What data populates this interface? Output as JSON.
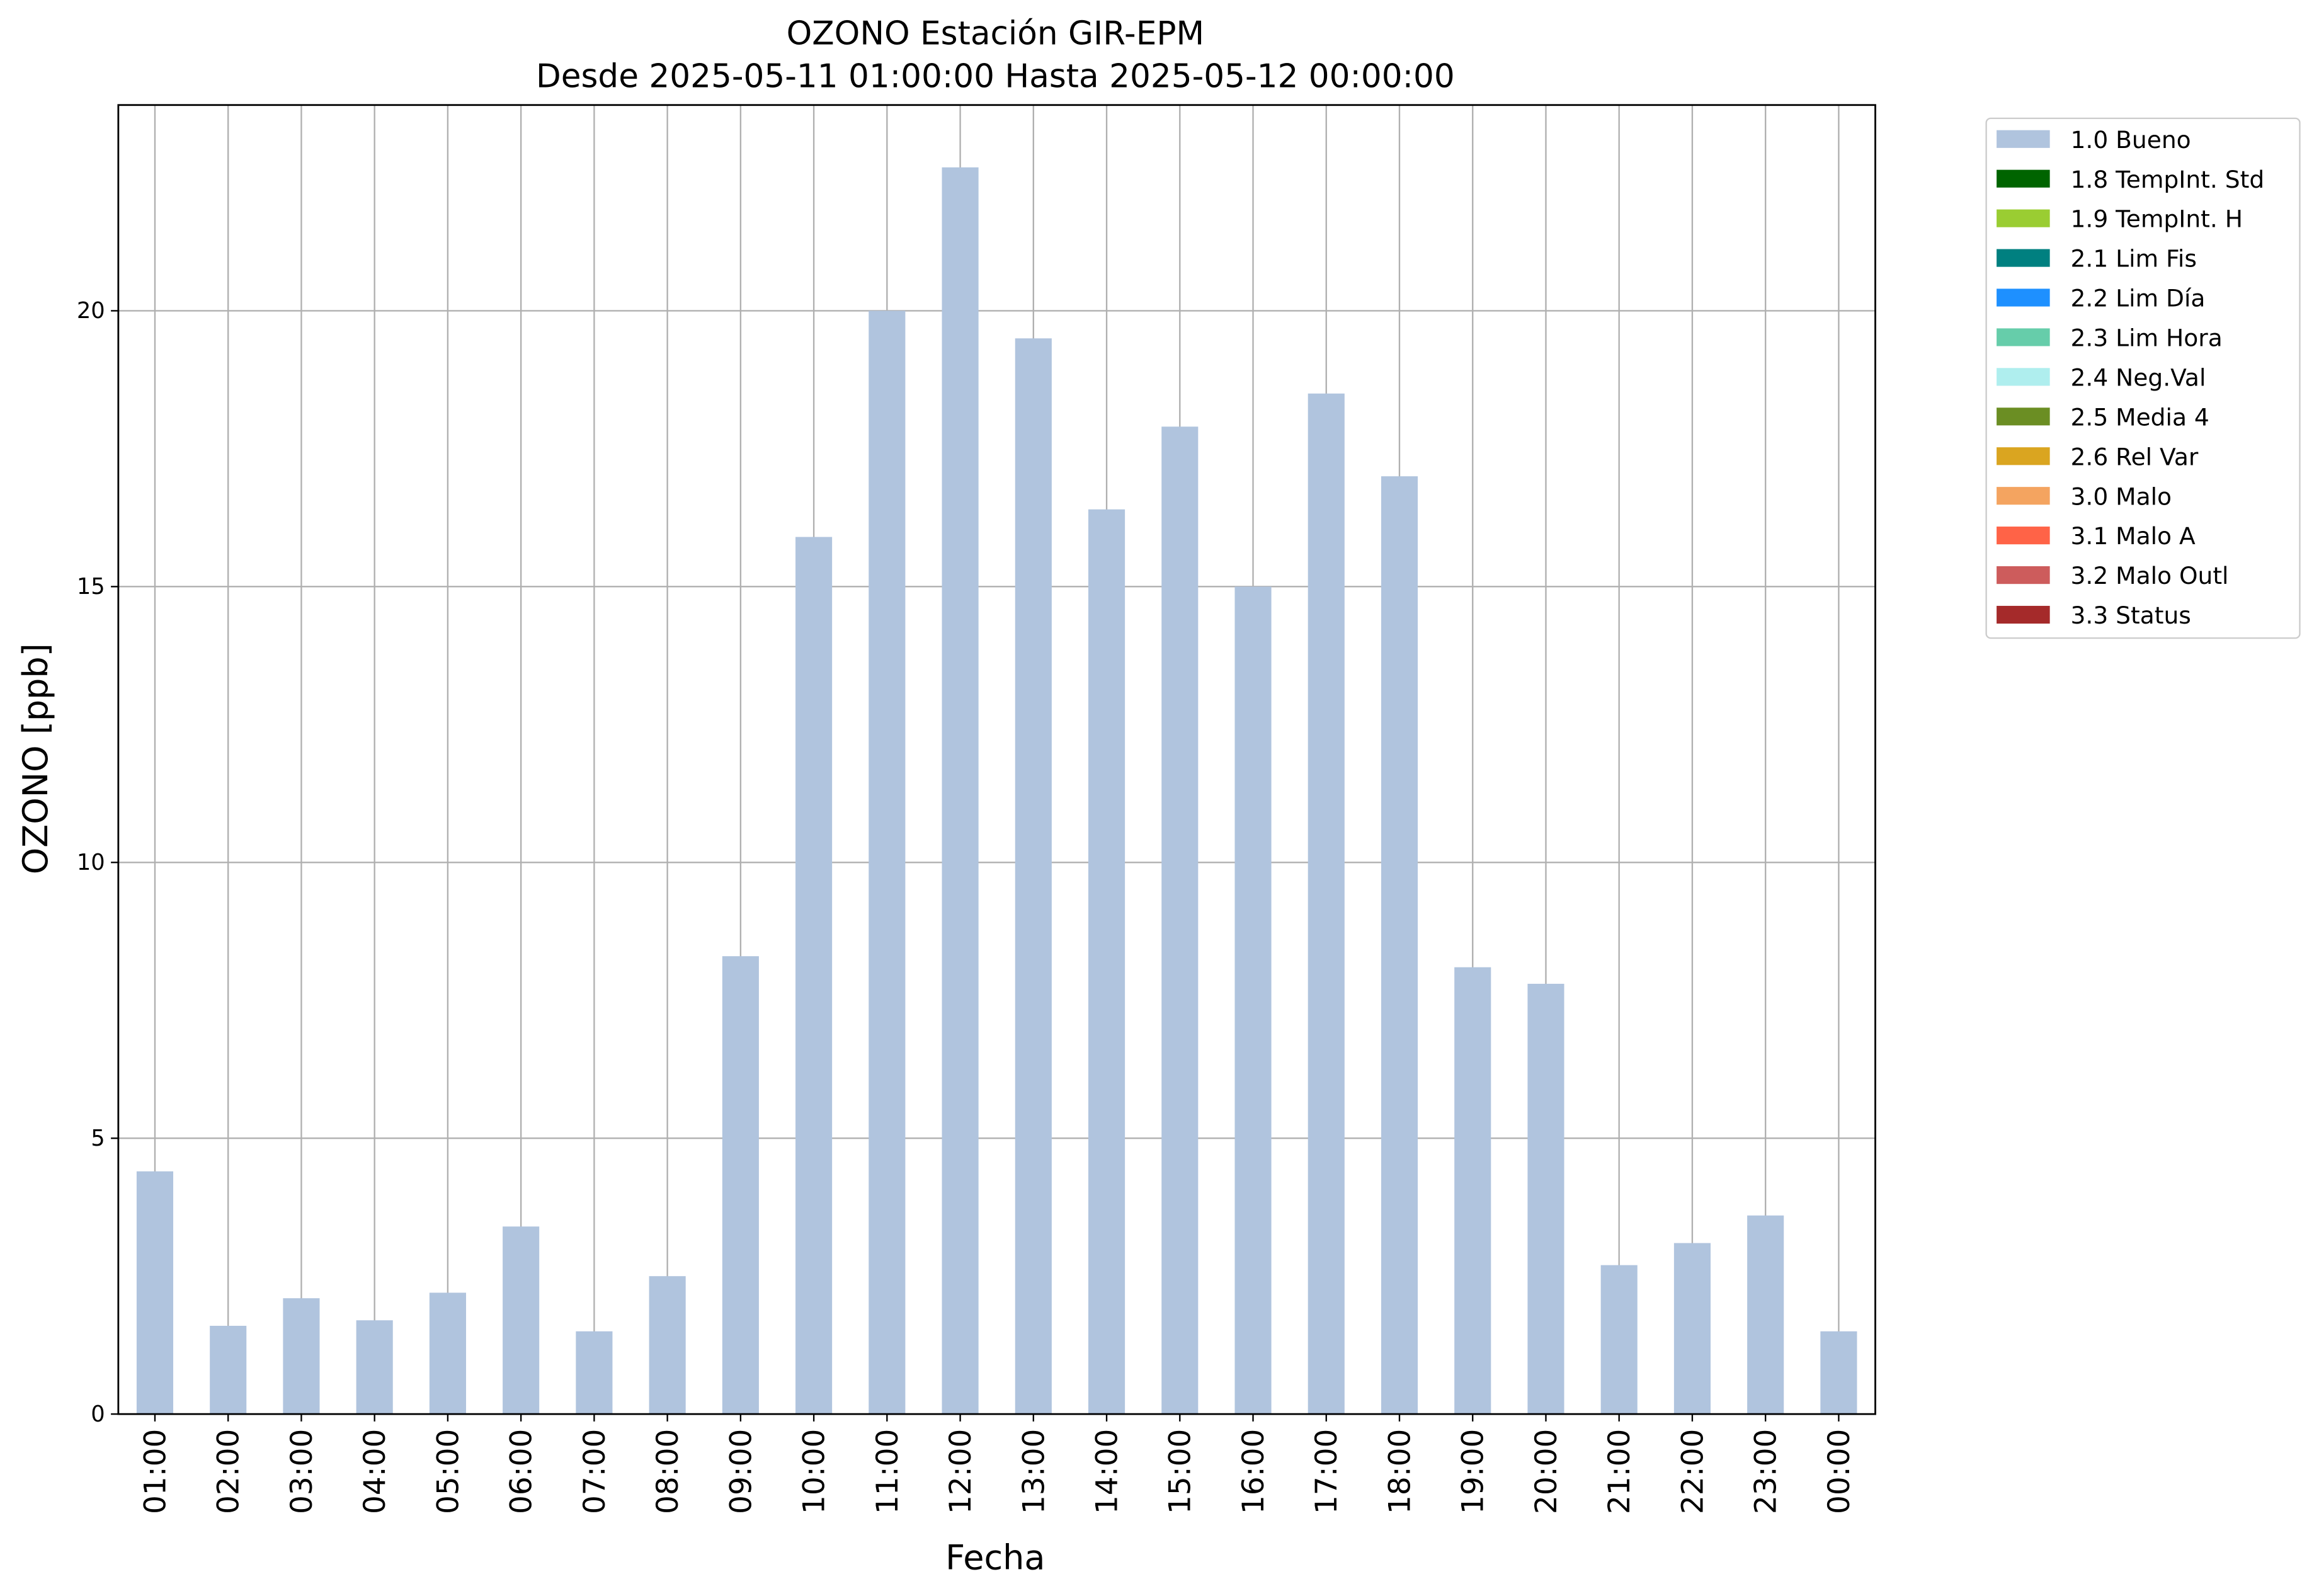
{
  "chart_data": {
    "type": "bar",
    "title": "OZONO Estación GIR-EPM",
    "subtitle": "Desde 2025-05-11 01:00:00 Hasta 2025-05-12 00:00:00",
    "x_label": "Fecha",
    "y_label": "OZONO [ppb]",
    "categories": [
      "01:00",
      "02:00",
      "03:00",
      "04:00",
      "05:00",
      "06:00",
      "07:00",
      "08:00",
      "09:00",
      "10:00",
      "11:00",
      "12:00",
      "13:00",
      "14:00",
      "15:00",
      "16:00",
      "17:00",
      "18:00",
      "19:00",
      "20:00",
      "21:00",
      "22:00",
      "23:00",
      "00:00"
    ],
    "series": [
      {
        "name": "1.0 Bueno",
        "color": "#b0c4de",
        "values": [
          4.4,
          1.6,
          2.1,
          1.7,
          2.2,
          3.4,
          1.5,
          2.5,
          8.3,
          15.9,
          20.0,
          22.6,
          19.5,
          16.4,
          17.9,
          15.0,
          18.5,
          17.0,
          8.1,
          7.8,
          2.7,
          3.1,
          3.6,
          1.5
        ]
      }
    ],
    "extra_legend": [
      {
        "name": "1.8 TempInt. Std",
        "color": "#006400"
      },
      {
        "name": "1.9 TempInt. H",
        "color": "#9acd32"
      },
      {
        "name": "2.1 Lim Fis",
        "color": "#008080"
      },
      {
        "name": "2.2 Lim Día",
        "color": "#1e90ff"
      },
      {
        "name": "2.3 Lim Hora",
        "color": "#66cdaa"
      },
      {
        "name": "2.4 Neg.Val",
        "color": "#afeeee"
      },
      {
        "name": "2.5 Media 4",
        "color": "#6b8e23"
      },
      {
        "name": "2.6 Rel Var",
        "color": "#daa520"
      },
      {
        "name": "3.0 Malo",
        "color": "#f4a460"
      },
      {
        "name": "3.1 Malo A",
        "color": "#ff6347"
      },
      {
        "name": "3.2 Malo Outl",
        "color": "#cd5c5c"
      },
      {
        "name": "3.3 Status",
        "color": "#a52a2a"
      }
    ],
    "ylim": [
      0,
      23.73
    ],
    "yticks": [
      0,
      5,
      10,
      15,
      20
    ],
    "grid": true,
    "legend": "outside-upper-right"
  }
}
